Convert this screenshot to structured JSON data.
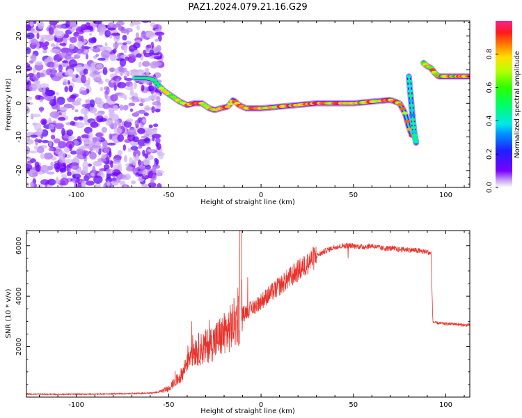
{
  "title": "PAZ1.2024.079.21.16.G29",
  "chart_data": [
    {
      "type": "heatmap",
      "name": "spectrogram",
      "xlabel": "Height of straight line (km)",
      "ylabel": "Frequency (Hz)",
      "xlim": [
        -127,
        113
      ],
      "ylim": [
        -25,
        24.5
      ],
      "xticks": [
        -100,
        -50,
        0,
        50,
        100
      ],
      "yticks": [
        -20,
        -10,
        0,
        10,
        20
      ],
      "colorbar": {
        "label": "Normalized spectral amplitude",
        "range": [
          0,
          1
        ],
        "ticks": [
          "0.0",
          "0.2",
          "0.4",
          "0.6",
          "0.8"
        ],
        "colormap": "gist_ncar_r-like (purple-blue-cyan-green-yellow-red-magenta)"
      },
      "noise_region_x": [
        -127,
        -57
      ],
      "ridge": {
        "x": [
          -68,
          -62,
          -58,
          -55,
          -52,
          -48,
          -44,
          -40,
          -36,
          -32,
          -28,
          -25,
          -22,
          -18,
          -15,
          -12,
          -8,
          -4,
          0,
          10,
          20,
          30,
          40,
          50,
          60,
          70,
          75,
          78,
          80,
          82
        ],
        "freq": [
          7.5,
          7.5,
          7,
          5,
          3.5,
          2,
          0.5,
          -0.5,
          0,
          0,
          -1.5,
          -2,
          -1.5,
          -1,
          1,
          -0.5,
          -1.5,
          -1.5,
          -1.5,
          -1,
          -0.5,
          0,
          0,
          0,
          0.5,
          1,
          0,
          -3,
          -7,
          -10
        ]
      },
      "second_track": {
        "x": [
          80,
          81,
          82,
          83,
          84
        ],
        "freq": [
          8,
          2,
          -4,
          -9,
          -12
        ]
      },
      "upper_track": {
        "x": [
          88,
          90,
          92,
          94,
          96,
          100,
          105,
          110,
          113
        ],
        "freq": [
          12,
          11,
          10.5,
          9,
          8,
          8,
          8,
          8,
          8
        ]
      }
    },
    {
      "type": "line",
      "name": "snr",
      "xlabel": "Height of straight line (km)",
      "ylabel": "SNR (10 * v/v)",
      "xlim": [
        -127,
        113
      ],
      "ylim": [
        0,
        6600
      ],
      "xticks": [
        -100,
        -50,
        0,
        50,
        100
      ],
      "yticks": [
        2000,
        4000,
        6000
      ],
      "color": "#e8342e",
      "series": [
        {
          "x": [
            -127,
            -110,
            -90,
            -70,
            -60,
            -55,
            -50,
            -45,
            -42,
            -40,
            -38,
            -35,
            -32,
            -28,
            -25,
            -22,
            -18,
            -15,
            -12,
            -11,
            -10,
            -8,
            -5,
            0,
            5,
            10,
            15,
            20,
            25,
            30,
            35,
            40,
            45,
            50,
            55,
            60,
            65,
            70,
            75,
            80,
            85,
            90,
            92,
            93,
            94,
            100,
            105,
            110,
            113
          ],
          "y": [
            120,
            110,
            120,
            140,
            160,
            200,
            350,
            700,
            1000,
            1500,
            1800,
            1900,
            1900,
            2100,
            2200,
            2400,
            2600,
            2900,
            3100,
            3300,
            3300,
            3400,
            3500,
            3800,
            4100,
            4400,
            4700,
            5000,
            5300,
            5600,
            5800,
            5950,
            6000,
            6000,
            5950,
            6000,
            5900,
            5900,
            5850,
            5850,
            5800,
            5750,
            5700,
            3000,
            2950,
            2900,
            2900,
            2850,
            2850
          ],
          "noise": 160
        }
      ]
    }
  ]
}
